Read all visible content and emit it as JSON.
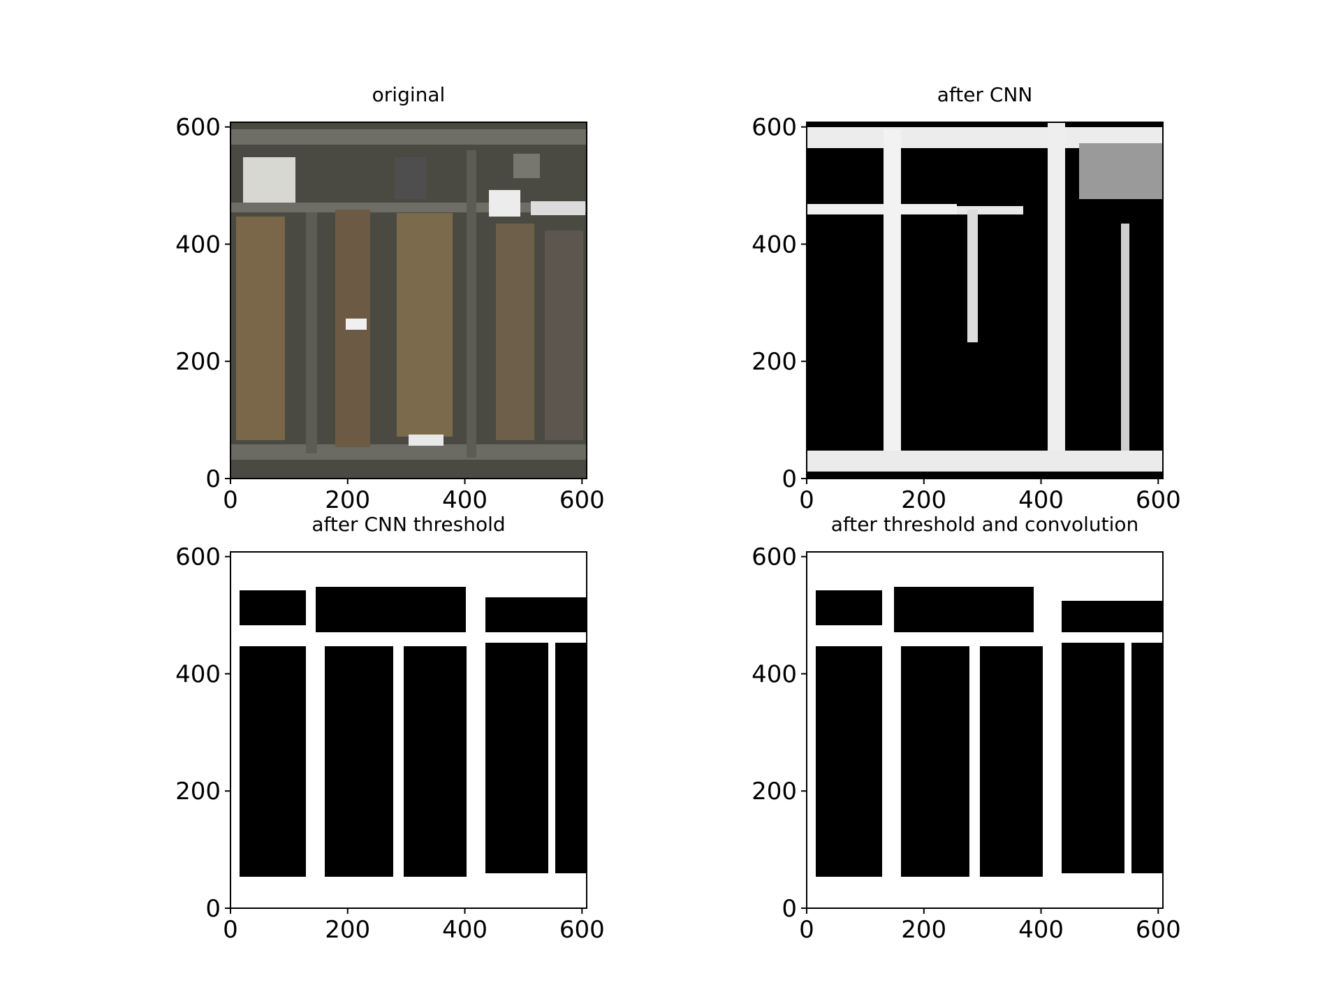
{
  "chart_data": [
    {
      "type": "heatmap",
      "title": "original",
      "image": "aerial-satellite-photo",
      "xlim": [
        0,
        608
      ],
      "ylim": [
        608,
        0
      ],
      "xticks": [
        0,
        200,
        400,
        600
      ],
      "yticks": [
        0,
        200,
        400,
        600
      ],
      "xtick_labels": [
        "0",
        "200",
        "400",
        "600"
      ],
      "ytick_labels": [
        "0",
        "200",
        "400",
        "600"
      ]
    },
    {
      "type": "heatmap",
      "title": "after CNN",
      "colormap": "gray",
      "xlim": [
        0,
        608
      ],
      "ylim": [
        608,
        0
      ],
      "xticks": [
        0,
        200,
        400,
        600
      ],
      "yticks": [
        0,
        200,
        400,
        600
      ],
      "xtick_labels": [
        "0",
        "200",
        "400",
        "600"
      ],
      "ytick_labels": [
        "0",
        "200",
        "400",
        "600"
      ]
    },
    {
      "type": "heatmap",
      "title": "after CNN threshold",
      "colormap": "binary",
      "xlim": [
        0,
        608
      ],
      "ylim": [
        608,
        0
      ],
      "xticks": [
        0,
        200,
        400,
        600
      ],
      "yticks": [
        0,
        200,
        400,
        600
      ],
      "xtick_labels": [
        "0",
        "200",
        "400",
        "600"
      ],
      "ytick_labels": [
        "0",
        "200",
        "400",
        "600"
      ]
    },
    {
      "type": "heatmap",
      "title": "after threshold and convolution",
      "colormap": "binary",
      "xlim": [
        0,
        608
      ],
      "ylim": [
        608,
        0
      ],
      "xticks": [
        0,
        200,
        400,
        600
      ],
      "yticks": [
        0,
        200,
        400,
        600
      ],
      "xtick_labels": [
        "0",
        "200",
        "400",
        "600"
      ],
      "ytick_labels": [
        "0",
        "200",
        "400",
        "600"
      ]
    }
  ]
}
